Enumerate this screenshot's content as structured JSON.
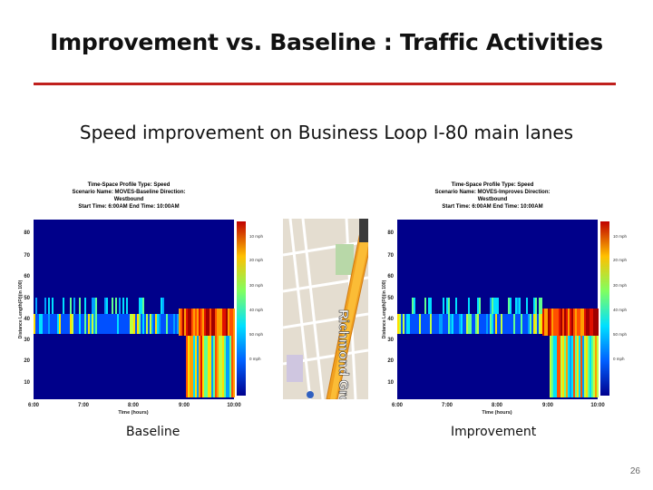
{
  "slide": {
    "title": "Improvement vs. Baseline : Traffic Activities",
    "subtitle": "Speed improvement on Business Loop I-80 main lanes",
    "page_number": "26",
    "accent_color": "#c0201d"
  },
  "panels": [
    {
      "caption": "Baseline",
      "header_lines": [
        "Time-Space Profile Type: Speed",
        "Scenario Name: MOVES-Baseline Direction:",
        "Westbound",
        "Start Time: 6:00AM  End Time: 10:00AM"
      ],
      "xlabel": "Time (hours)",
      "ylabel": "Distance Length(Ft)(in 100)",
      "x_ticks": [
        "6:00",
        "7:00",
        "8:00",
        "9:00",
        "10:00"
      ],
      "y_ticks": [
        "80",
        "70",
        "60",
        "50",
        "40",
        "30",
        "20",
        "10"
      ],
      "colorbar_labels": [
        "0 mph",
        "10 mph",
        "20 mph",
        "30 mph",
        "40 mph",
        "50 mph"
      ]
    },
    {
      "caption": "Improvement",
      "header_lines": [
        "Time-Space Profile Type: Speed",
        "Scenario Name: MOVES-Improves Direction:",
        "Westbound",
        "Start Time: 6:00AM  End Time: 10:00AM"
      ],
      "xlabel": "Time (hours)",
      "ylabel": "Distance Length(Ft)(in 100)",
      "x_ticks": [
        "6:00",
        "7:00",
        "8:00",
        "9:00",
        "10:00"
      ],
      "y_ticks": [
        "80",
        "70",
        "60",
        "50",
        "40",
        "30",
        "20",
        "10"
      ],
      "colorbar_labels": [
        "0 mph",
        "10 mph",
        "20 mph",
        "30 mph",
        "40 mph",
        "50 mph"
      ]
    }
  ],
  "map": {
    "street_label": "Richmond Grove",
    "colors": {
      "road": "#f0a020",
      "ground": "#e4ddd0",
      "park": "#b8d8a8",
      "street": "#ffffff"
    }
  }
}
